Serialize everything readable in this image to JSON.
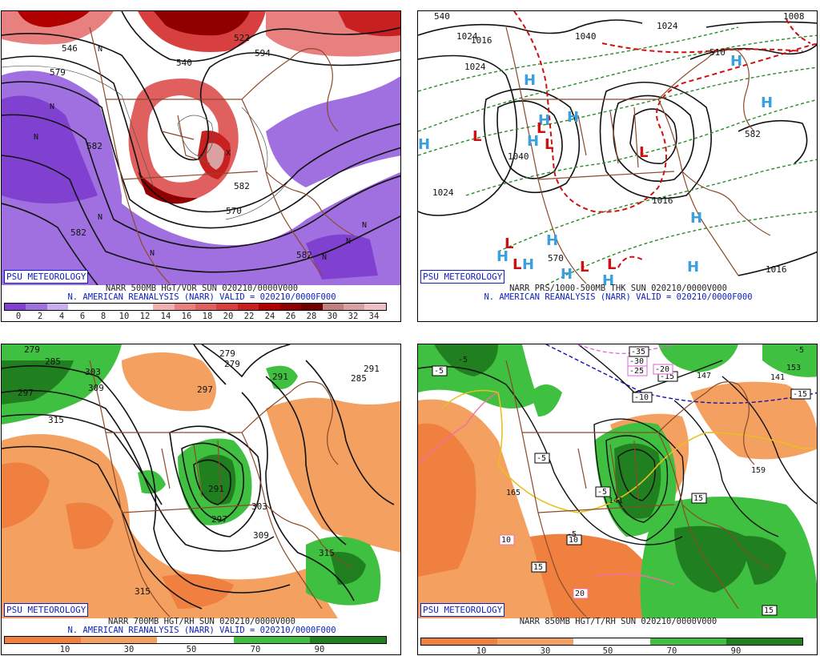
{
  "panels": [
    {
      "badge": "PSU METEOROLOGY",
      "caption_line1": "NARR 500MB HGT/VOR SUN 020210/0000V000",
      "caption_line2": "N. AMERICAN REANALYSIS (NARR) VALID = 020210/0000F000",
      "colorbar_ticks": [
        "0",
        "2",
        "4",
        "6",
        "8",
        "10",
        "12",
        "14",
        "16",
        "18",
        "20",
        "22",
        "24",
        "26",
        "28",
        "30",
        "32",
        "34"
      ],
      "contour_labels": [
        "546",
        "579",
        "582",
        "540",
        "522",
        "594",
        "570",
        "582",
        "582",
        "582"
      ],
      "colors": [
        "#8040d0",
        "#a070e0",
        "#c8b0f0",
        "#ffffff",
        "#ffffff",
        "#ffffff",
        "#ffffff",
        "#f0b0b0",
        "#e88080",
        "#e06060",
        "#d84040",
        "#c82020",
        "#b00000",
        "#900000",
        "#700000",
        "#c08080",
        "#d8a0a0",
        "#f0c0c8"
      ]
    },
    {
      "badge": "PSU METEOROLOGY",
      "caption_line1": "NARR PRS/1000-500MB THK SUN 020210/0000V000",
      "caption_line2": "N. AMERICAN REANALYSIS (NARR) VALID = 020210/0000F000",
      "contour_labels": [
        "1024",
        "1016",
        "1024",
        "1040",
        "1040",
        "1024",
        "1024",
        "1016",
        "1016",
        "1008",
        "570",
        "540",
        "510",
        "582"
      ],
      "high_symbol": "H",
      "low_symbol": "L"
    },
    {
      "badge": "PSU METEOROLOGY",
      "caption_line1": "NARR 700MB HGT/RH SUN 020210/0000V000",
      "caption_line2": "N. AMERICAN REANALYSIS (NARR) VALID = 020210/0000F000",
      "colorbar_ticks": [
        "10",
        "30",
        "50",
        "70",
        "90"
      ],
      "contour_labels": [
        "279",
        "285",
        "297",
        "303",
        "309",
        "315",
        "279",
        "279",
        "291",
        "297",
        "291",
        "285",
        "303",
        "309",
        "297",
        "291",
        "315",
        "315"
      ],
      "colors": [
        "#f08040",
        "#f4a060",
        "#ffffff",
        "#40c040",
        "#208020"
      ]
    },
    {
      "badge": "PSU METEOROLOGY",
      "caption_line1": "NARR 850MB HGT/T/RH SUN 020210/0000V000",
      "caption_line2": "",
      "colorbar_ticks": [
        "10",
        "30",
        "50",
        "70",
        "90"
      ],
      "contour_labels": [
        "-5",
        "-5",
        "-5",
        "-10",
        "-15",
        "-15",
        "-20",
        "-25",
        "-30",
        "-35",
        "165",
        "147",
        "141",
        "159",
        "153",
        "141",
        "10",
        "15",
        "20",
        "15",
        "10",
        "15",
        "-5",
        "-5",
        "-5"
      ],
      "colors": [
        "#f08040",
        "#f4a060",
        "#ffffff",
        "#40c040",
        "#208020"
      ]
    }
  ]
}
